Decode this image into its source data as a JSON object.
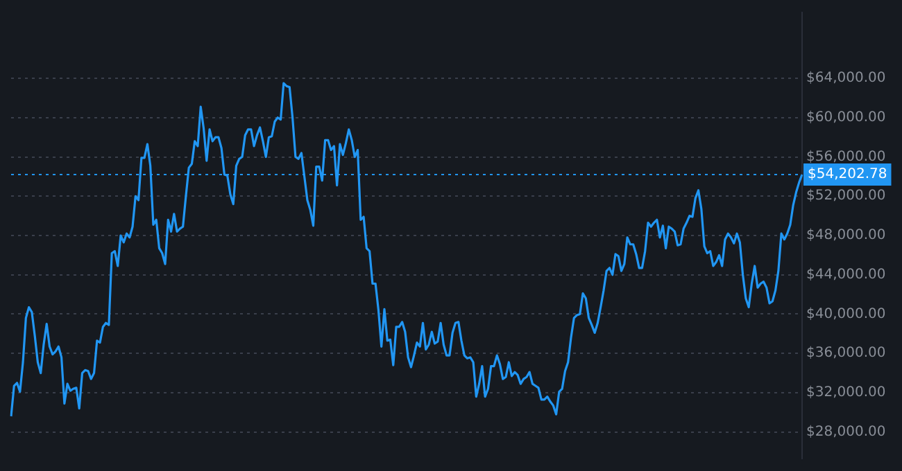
{
  "chart_data": {
    "type": "line",
    "categories": [
      null,
      null,
      null,
      null,
      null,
      null,
      null,
      null,
      null,
      null,
      null,
      null,
      null,
      null,
      null,
      null,
      null,
      null,
      null,
      null,
      null,
      null,
      null,
      null,
      null,
      null,
      null,
      null,
      null,
      null,
      null,
      null,
      null,
      null,
      null,
      null,
      null,
      null,
      null,
      null,
      null,
      null,
      null,
      null,
      null,
      null,
      null,
      null,
      null,
      null,
      null,
      null,
      null,
      null,
      null,
      null,
      null,
      null,
      null,
      null,
      null,
      null,
      null,
      null,
      null,
      null,
      null,
      null,
      null,
      null,
      null,
      null,
      null,
      null,
      null,
      null,
      null,
      null,
      null,
      null,
      null,
      null,
      null,
      null,
      null,
      null,
      null,
      null,
      null,
      null,
      null,
      null,
      null,
      null,
      null,
      null,
      null,
      null,
      null,
      null,
      null,
      null,
      null,
      null,
      null,
      null,
      null,
      null,
      null,
      null,
      null,
      null,
      null,
      null,
      null,
      null,
      null,
      null,
      null,
      null,
      null,
      null,
      null,
      null,
      null,
      null,
      null,
      null,
      null,
      null,
      null,
      null,
      null,
      null,
      null,
      null,
      null,
      null,
      null,
      null,
      null,
      null,
      null,
      null,
      null,
      null,
      null,
      null,
      null,
      null,
      null,
      null,
      null,
      null,
      null,
      null,
      null,
      null,
      null,
      null,
      null,
      null,
      null,
      null,
      null,
      null,
      null,
      null,
      null,
      null,
      null,
      null,
      null,
      null,
      null,
      null,
      null,
      null,
      null,
      null,
      null,
      null,
      null,
      null,
      null,
      null,
      null,
      null,
      null,
      null,
      null,
      null,
      null,
      null,
      null,
      null,
      null,
      null,
      null,
      null,
      null,
      null,
      null,
      null,
      null,
      null,
      null,
      null,
      null,
      null,
      null,
      null,
      null,
      null,
      null,
      null,
      null,
      null,
      null,
      null,
      null,
      null,
      null,
      null,
      null,
      null,
      null,
      null,
      null,
      null,
      null,
      null,
      null,
      null,
      null,
      null,
      null,
      null,
      null,
      null,
      null,
      null,
      null,
      null,
      null,
      null,
      null,
      null,
      null,
      null,
      null,
      null,
      null,
      null,
      null,
      null,
      null,
      null,
      null,
      null,
      null,
      null,
      null,
      null,
      null,
      null,
      null,
      null
    ],
    "series": [
      {
        "color": "#2196f3",
        "values": [
          29600,
          32700,
          33000,
          32100,
          35100,
          39600,
          40700,
          40200,
          37800,
          35100,
          34000,
          36900,
          39000,
          36700,
          35900,
          36200,
          36700,
          35600,
          30900,
          32900,
          32200,
          32400,
          32500,
          30400,
          34000,
          34300,
          34200,
          33400,
          34000,
          37300,
          37100,
          38700,
          39100,
          38900,
          46200,
          46400,
          44900,
          48000,
          47300,
          48200,
          47800,
          48900,
          52000,
          51600,
          55900,
          55900,
          57300,
          55100,
          49100,
          49600,
          46700,
          46200,
          45100,
          49600,
          48400,
          50200,
          48400,
          48700,
          48900,
          52000,
          54900,
          55300,
          57600,
          57100,
          61100,
          58900,
          55600,
          58800,
          57600,
          58000,
          58000,
          56900,
          54200,
          54100,
          52200,
          51200,
          55100,
          55800,
          56000,
          58200,
          58800,
          58800,
          57100,
          58200,
          59000,
          57600,
          56000,
          58000,
          58100,
          59600,
          60000,
          59800,
          63500,
          63200,
          63100,
          60000,
          56000,
          55800,
          56400,
          54000,
          51600,
          50600,
          49000,
          55000,
          55000,
          53600,
          57700,
          57700,
          56700,
          57100,
          53100,
          57300,
          56200,
          57400,
          58800,
          57700,
          56000,
          56700,
          49600,
          49900,
          46700,
          46400,
          43100,
          43100,
          40400,
          36700,
          40500,
          37300,
          37400,
          34800,
          38700,
          38700,
          39200,
          38200,
          35600,
          34600,
          35800,
          37100,
          36700,
          39100,
          36400,
          36900,
          38200,
          37000,
          37200,
          39100,
          36900,
          35800,
          35800,
          38100,
          39100,
          39200,
          37300,
          35800,
          35500,
          35600,
          35100,
          31600,
          32900,
          34700,
          31600,
          32400,
          34700,
          34700,
          35800,
          34900,
          33400,
          33600,
          35100,
          33700,
          34100,
          33800,
          32900,
          33400,
          33600,
          34100,
          32900,
          32700,
          32500,
          31300,
          31300,
          31600,
          31100,
          30700,
          29800,
          32100,
          32400,
          34200,
          35100,
          37600,
          39600,
          39900,
          40000,
          42100,
          41600,
          39600,
          38900,
          38100,
          39100,
          40700,
          42400,
          44400,
          44700,
          44000,
          46100,
          45900,
          44400,
          45100,
          47800,
          47100,
          47100,
          46100,
          44700,
          44700,
          46400,
          49300,
          48900,
          49300,
          49600,
          47800,
          49000,
          46700,
          48900,
          48700,
          48400,
          47000,
          47100,
          48700,
          49300,
          50000,
          49900,
          51800,
          52600,
          50700,
          46900,
          46200,
          46400,
          44900,
          45300,
          46000,
          44900,
          47600,
          48200,
          47800,
          47200,
          48200,
          47300,
          44000,
          41600,
          40700,
          43100,
          44900,
          42700,
          43100,
          43300,
          42700,
          41100,
          41300,
          42400,
          44400,
          48200,
          47600,
          48200,
          49100,
          51100,
          52400,
          53400,
          54202.78
        ]
      }
    ],
    "ylim": [
      25300,
      70700
    ],
    "yticks": [
      {
        "value": 28000,
        "label": "$28,000.00"
      },
      {
        "value": 32000,
        "label": "$32,000.00"
      },
      {
        "value": 36000,
        "label": "$36,000.00"
      },
      {
        "value": 40000,
        "label": "$40,000.00"
      },
      {
        "value": 44000,
        "label": "$44,000.00"
      },
      {
        "value": 48000,
        "label": "$48,000.00"
      },
      {
        "value": 52000,
        "label": "$52,000.00"
      },
      {
        "value": 56000,
        "label": "$56,000.00"
      },
      {
        "value": 60000,
        "label": "$60,000.00"
      },
      {
        "value": 64000,
        "label": "$64,000.00"
      }
    ],
    "grid": "y",
    "tick_labels": "y",
    "marker": "none",
    "line_style": "solid",
    "ref_lines": [
      {
        "axis": "y",
        "value": 54202.78,
        "label": "$54,202.78",
        "color": "#2196f3",
        "line_style": "dotted"
      }
    ]
  }
}
